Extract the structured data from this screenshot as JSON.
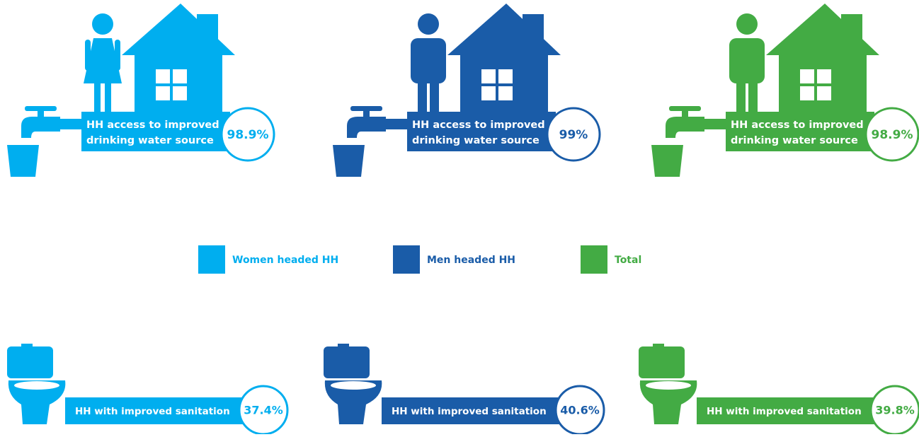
{
  "water": [
    {
      "label_line1": "HH access to improved",
      "label_line2": "drinking water source",
      "value": "98.9%"
    },
    {
      "label_line1": "HH access to improved",
      "label_line2": "drinking water source",
      "value": "99%"
    },
    {
      "label_line1": "HH access to improved",
      "label_line2": "drinking water source",
      "value": "98.9%"
    }
  ],
  "legend": [
    {
      "label": "Women headed HH",
      "color": "#00aeef"
    },
    {
      "label": "Men headed HH",
      "color": "#1a5ca8"
    },
    {
      "label": "Total",
      "color": "#43ab44"
    }
  ],
  "sanitation": [
    {
      "label": "HH with improved sanitation",
      "value": "37.4%"
    },
    {
      "label": "HH with improved sanitation",
      "value": "40.6%"
    },
    {
      "label": "HH with improved sanitation",
      "value": "39.8%"
    }
  ]
}
